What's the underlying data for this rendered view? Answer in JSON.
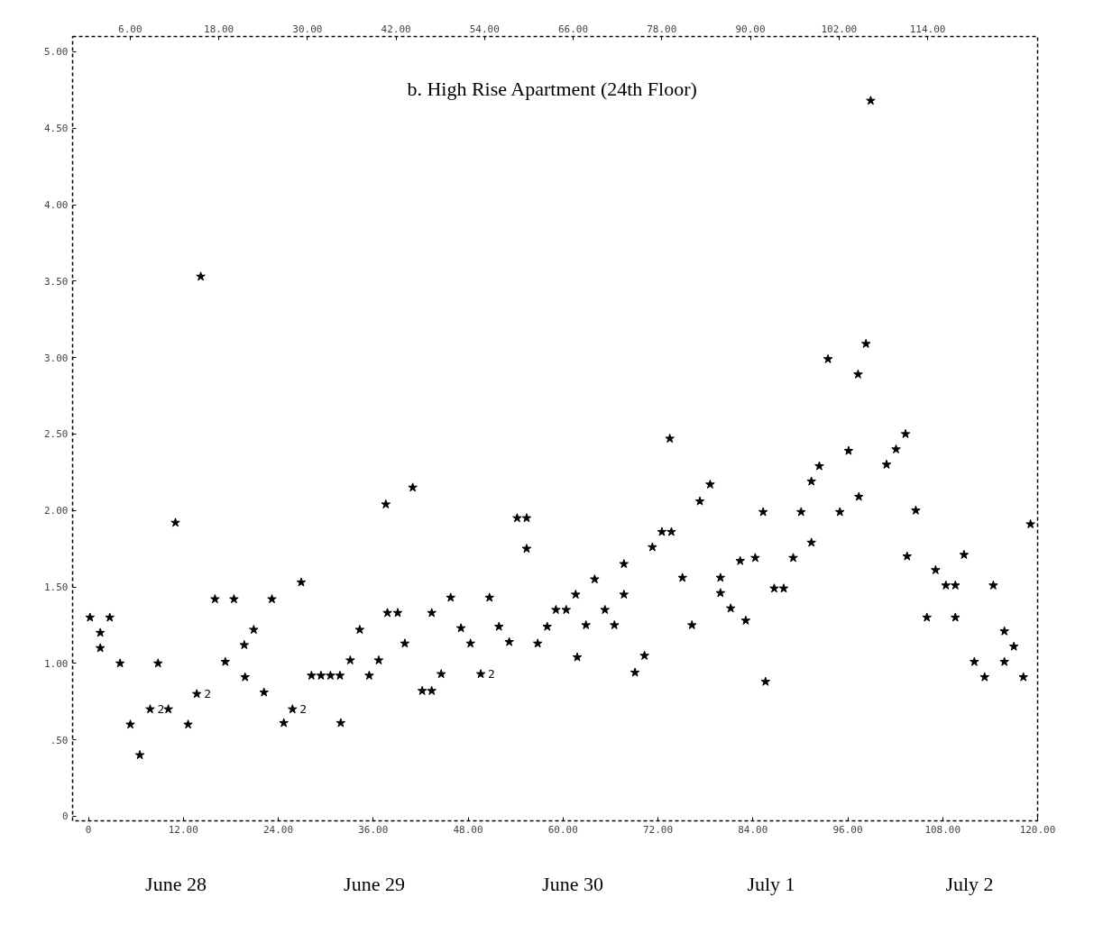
{
  "chart_data": {
    "type": "scatter",
    "title": "b.  High Rise Apartment (24th Floor)",
    "x": [
      0.2,
      1.5,
      1.5,
      2.7,
      4.0,
      5.3,
      6.5,
      7.8,
      8.8,
      10.1,
      11.0,
      12.6,
      13.7,
      14.2,
      16.0,
      17.3,
      18.4,
      19.7,
      19.8,
      20.9,
      22.2,
      23.2,
      24.7,
      25.8,
      26.9,
      28.2,
      29.4,
      30.6,
      31.8,
      31.9,
      33.1,
      34.3,
      35.5,
      36.7,
      37.6,
      37.8,
      39.1,
      40.0,
      41.0,
      42.2,
      43.4,
      43.4,
      44.6,
      45.8,
      47.1,
      48.3,
      49.6,
      50.7,
      51.9,
      53.2,
      54.2,
      55.4,
      55.4,
      56.8,
      58.0,
      59.1,
      60.4,
      61.6,
      61.8,
      62.9,
      64.0,
      65.3,
      66.5,
      67.7,
      67.7,
      69.1,
      70.3,
      71.3,
      72.5,
      73.5,
      73.7,
      75.1,
      76.3,
      77.3,
      78.6,
      79.9,
      79.9,
      81.2,
      82.4,
      83.1,
      84.3,
      85.3,
      85.6,
      86.7,
      87.9,
      89.1,
      90.1,
      91.4,
      91.4,
      92.4,
      93.5,
      95.0,
      96.1,
      97.3,
      97.4,
      98.3,
      98.9,
      100.9,
      102.1,
      103.3,
      103.5,
      104.6,
      106.0,
      107.1,
      108.4,
      109.6,
      109.6,
      110.7,
      112.0,
      113.3,
      114.4,
      115.8,
      115.8,
      117.0,
      118.2,
      119.1
    ],
    "series": [
      {
        "color": "#000000",
        "values": [
          1.3,
          1.2,
          1.1,
          1.3,
          1.0,
          0.6,
          0.4,
          0.7,
          1.0,
          0.7,
          1.92,
          0.6,
          0.8,
          3.53,
          1.42,
          1.01,
          1.42,
          1.12,
          0.91,
          1.22,
          0.81,
          1.42,
          0.61,
          0.7,
          1.53,
          0.92,
          0.92,
          0.92,
          0.92,
          0.61,
          1.02,
          1.22,
          0.92,
          1.02,
          2.04,
          1.33,
          1.33,
          1.13,
          2.15,
          0.82,
          0.82,
          1.33,
          0.93,
          1.43,
          1.23,
          1.13,
          0.93,
          1.43,
          1.24,
          1.14,
          1.95,
          1.95,
          1.75,
          1.13,
          1.24,
          1.35,
          1.35,
          1.45,
          1.04,
          1.25,
          1.55,
          1.35,
          1.25,
          1.65,
          1.45,
          0.94,
          1.05,
          1.76,
          1.86,
          2.47,
          1.86,
          1.56,
          1.25,
          2.06,
          2.17,
          1.56,
          1.46,
          1.36,
          1.67,
          1.28,
          1.69,
          1.99,
          0.88,
          1.49,
          1.49,
          1.69,
          1.99,
          2.19,
          1.79,
          2.29,
          2.99,
          1.99,
          2.39,
          2.89,
          2.09,
          3.09,
          4.68,
          2.3,
          2.4,
          2.5,
          1.7,
          2.0,
          1.3,
          1.61,
          1.51,
          1.51,
          1.3,
          1.71,
          1.01,
          0.91,
          1.51,
          1.21,
          1.01,
          1.11,
          0.91,
          1.91
        ]
      }
    ],
    "marker": "star",
    "grid": false,
    "xlim": [
      -2,
      120
    ],
    "xticks": [
      0,
      {
        "value": 12,
        "label": "12.00"
      },
      {
        "value": 24,
        "label": "24.00"
      },
      {
        "value": 36,
        "label": "36.00"
      },
      {
        "value": 48,
        "label": "48.00"
      },
      {
        "value": 60,
        "label": "60.00"
      },
      {
        "value": 72,
        "label": "72.00"
      },
      {
        "value": 84,
        "label": "84.00"
      },
      {
        "value": 96,
        "label": "96.00"
      },
      {
        "value": 108,
        "label": "108.00"
      },
      {
        "value": 120,
        "label": "120.00"
      }
    ],
    "x2lim": [
      -1.8,
      128.9
    ],
    "x2ticks": [
      {
        "value": 6,
        "label": "6.00"
      },
      {
        "value": 18,
        "label": "18.00"
      },
      {
        "value": 30,
        "label": "30.00"
      },
      {
        "value": 42,
        "label": "42.00"
      },
      {
        "value": 54,
        "label": "54.00"
      },
      {
        "value": 66,
        "label": "66.00"
      },
      {
        "value": 78,
        "label": "78.00"
      },
      {
        "value": 90,
        "label": "90.00"
      },
      {
        "value": 102,
        "label": "102.00"
      },
      {
        "value": 114,
        "label": "114.00"
      }
    ],
    "ylim": [
      -0.03,
      5.1
    ],
    "yticks": [
      0,
      {
        "value": 0.5,
        "label": ".50"
      },
      {
        "value": 1,
        "label": "1.00"
      },
      {
        "value": 1.5,
        "label": "1.50"
      },
      {
        "value": 2,
        "label": "2.00"
      },
      {
        "value": 2.5,
        "label": "2.50"
      },
      {
        "value": 3,
        "label": "3.00"
      },
      {
        "value": 3.5,
        "label": "3.50"
      },
      {
        "value": 4,
        "label": "4.00"
      },
      {
        "value": 4.5,
        "label": "4.50"
      },
      {
        "value": 5,
        "label": "5.00"
      }
    ],
    "annotations": [
      {
        "text": "2",
        "x": 7.8,
        "y": 0.7
      },
      {
        "text": "2",
        "x": 13.7,
        "y": 0.8
      },
      {
        "text": "2",
        "x": 25.8,
        "y": 0.7
      },
      {
        "text": "2",
        "x": 49.6,
        "y": 0.93
      },
      "June 28",
      "June 29",
      "June 30",
      "July 1",
      "July 2"
    ]
  }
}
